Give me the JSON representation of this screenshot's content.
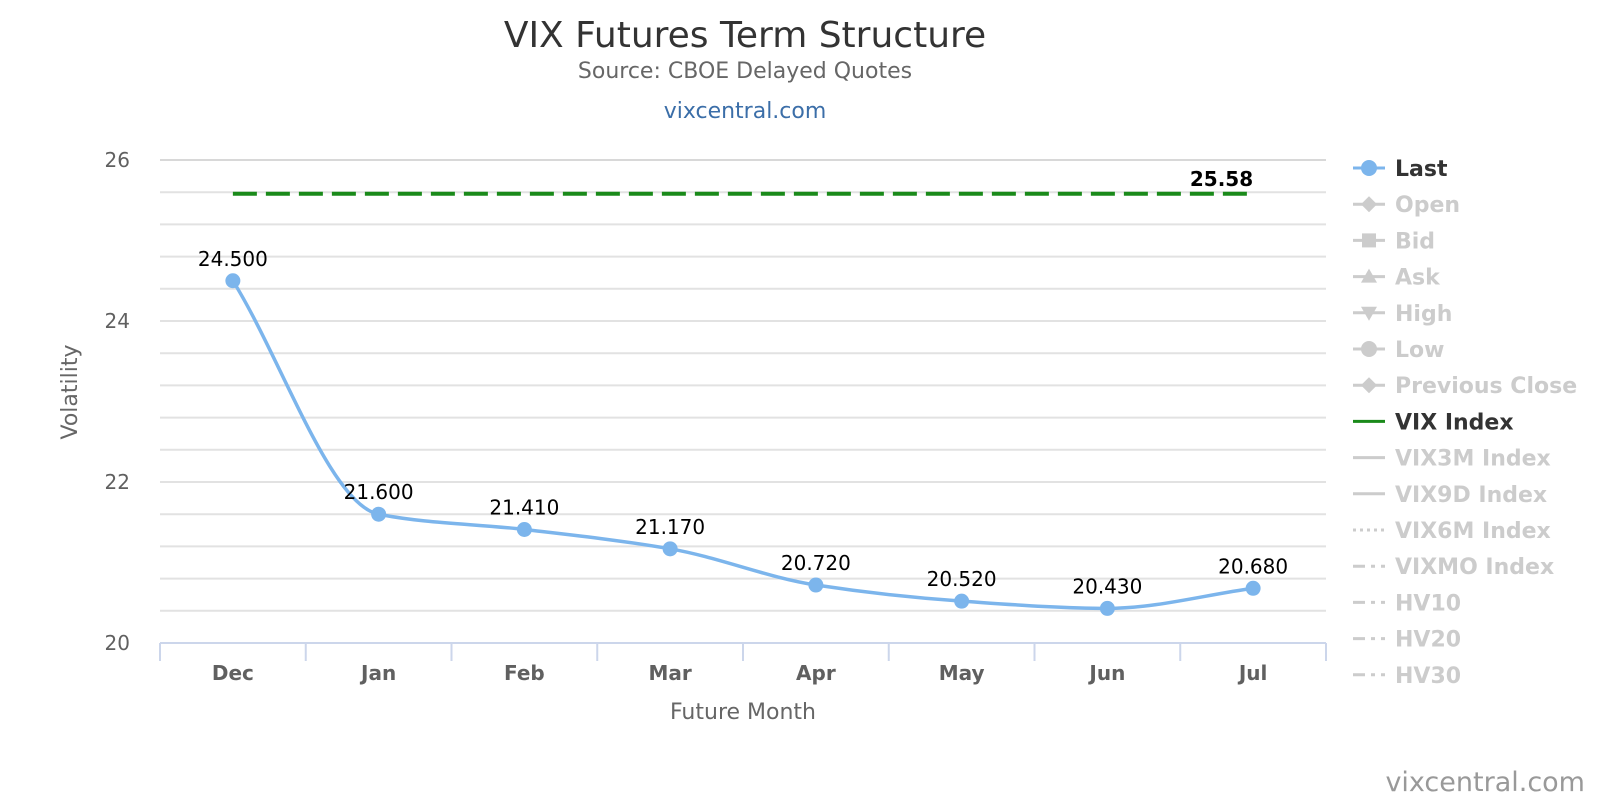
{
  "chart_data": {
    "type": "line",
    "title": "VIX Futures Term Structure",
    "subtitle": "Source: CBOE Delayed Quotes",
    "subtitle_link": "vixcentral.com",
    "credit": "vixcentral.com",
    "xlabel": "Future Month",
    "ylabel": "Volatility",
    "categories": [
      "Dec",
      "Jan",
      "Feb",
      "Mar",
      "Apr",
      "May",
      "Jun",
      "Jul"
    ],
    "ylim": [
      20,
      26
    ],
    "yticks": [
      20,
      22,
      24,
      26
    ],
    "grid": true,
    "legend_position": "right",
    "series": [
      {
        "name": "Last",
        "color": "#7cb5ec",
        "values": [
          24.5,
          21.6,
          21.41,
          21.17,
          20.72,
          20.52,
          20.43,
          20.68
        ],
        "labels": [
          "24.500",
          "21.600",
          "21.410",
          "21.170",
          "20.720",
          "20.520",
          "20.430",
          "20.680"
        ],
        "style": "spline-with-markers"
      },
      {
        "name": "VIX Index",
        "color": "#1a8a1a",
        "values": [
          25.58,
          25.58,
          25.58,
          25.58,
          25.58,
          25.58,
          25.58,
          25.58
        ],
        "end_label": "25.58",
        "style": "dashed"
      }
    ],
    "legend": [
      {
        "name": "Last",
        "symbol": "circle-line",
        "active": true,
        "color": "#7cb5ec"
      },
      {
        "name": "Open",
        "symbol": "diamond-line",
        "active": false
      },
      {
        "name": "Bid",
        "symbol": "square-line",
        "active": false
      },
      {
        "name": "Ask",
        "symbol": "triangle-line",
        "active": false
      },
      {
        "name": "High",
        "symbol": "triangle-down-line",
        "active": false
      },
      {
        "name": "Low",
        "symbol": "circle-line",
        "active": false
      },
      {
        "name": "Previous Close",
        "symbol": "diamond-line",
        "active": false
      },
      {
        "name": "VIX Index",
        "symbol": "line",
        "active": true,
        "color": "#1a8a1a"
      },
      {
        "name": "VIX3M Index",
        "symbol": "line",
        "active": false
      },
      {
        "name": "VIX9D Index",
        "symbol": "line",
        "active": false
      },
      {
        "name": "VIX6M Index",
        "symbol": "dotted-line",
        "active": false
      },
      {
        "name": "VIXMO Index",
        "symbol": "dash-dot-line",
        "active": false
      },
      {
        "name": "HV10",
        "symbol": "dash-dot-line",
        "active": false
      },
      {
        "name": "HV20",
        "symbol": "dash-dot-line",
        "active": false
      },
      {
        "name": "HV30",
        "symbol": "dash-dot-line",
        "active": false
      }
    ]
  }
}
